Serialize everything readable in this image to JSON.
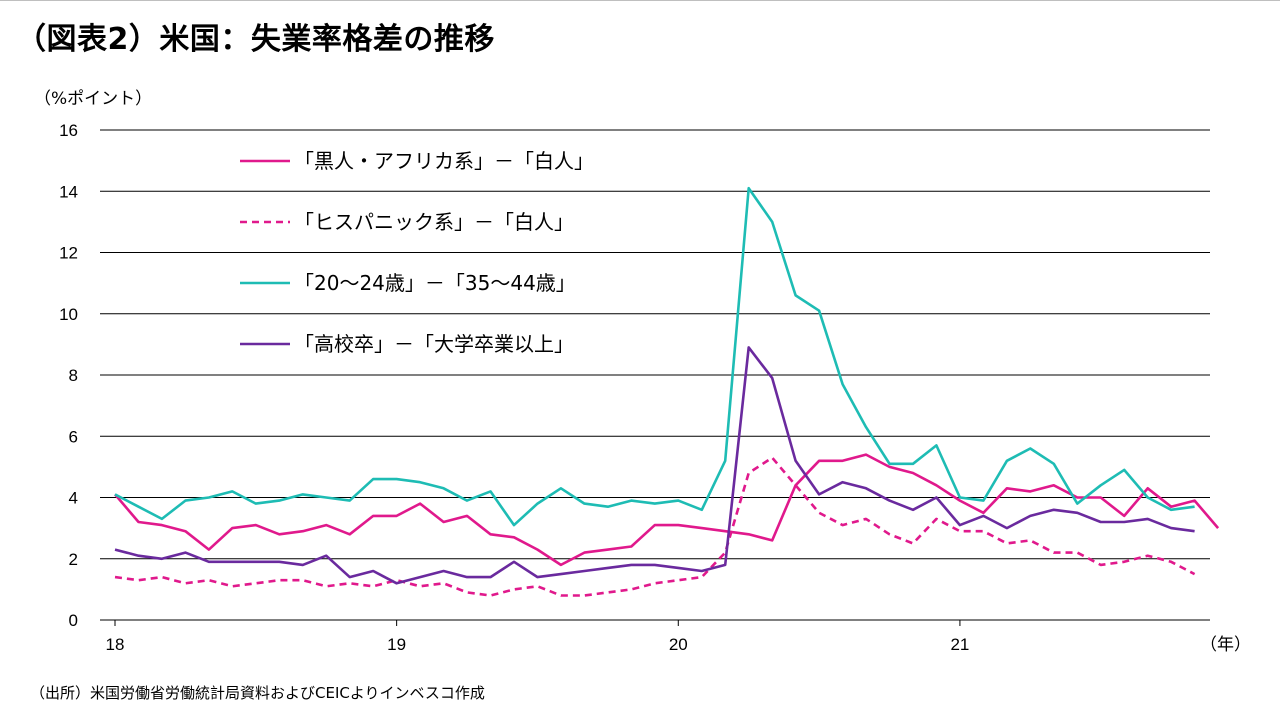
{
  "title": "（図表2）米国：失業率格差の推移",
  "source": "（出所）米国労働省労働統計局資料およびCEICよりインベスコ作成",
  "chart_data": {
    "type": "line",
    "y_unit_label": "（%ポイント）",
    "x_unit_label": "（年）",
    "ylim": [
      0,
      16
    ],
    "y_ticks": [
      0,
      2,
      4,
      6,
      8,
      10,
      12,
      14,
      16
    ],
    "xlim": [
      0,
      47
    ],
    "x_ticks": [
      {
        "pos": 0,
        "label": "18"
      },
      {
        "pos": 12,
        "label": "19"
      },
      {
        "pos": 24,
        "label": "20"
      },
      {
        "pos": 36,
        "label": "21"
      }
    ],
    "grid": true,
    "legend_position": "top-left",
    "series": [
      {
        "name": "「黒人・アフリカ系」－「白人」",
        "color": "#e0198c",
        "dash": "solid",
        "values": [
          4.1,
          3.2,
          3.1,
          2.9,
          2.3,
          3.0,
          3.1,
          2.8,
          2.9,
          3.1,
          2.8,
          3.4,
          3.4,
          3.8,
          3.2,
          3.4,
          2.8,
          2.7,
          2.3,
          1.8,
          2.2,
          2.3,
          2.4,
          3.1,
          3.1,
          3.0,
          2.9,
          2.8,
          2.6,
          4.4,
          5.2,
          5.2,
          5.4,
          5.0,
          4.8,
          4.4,
          3.9,
          3.5,
          4.3,
          4.2,
          4.4,
          4.0,
          4.0,
          3.4,
          4.3,
          3.7,
          3.9,
          3.0
        ]
      },
      {
        "name": "「ヒスパニック系」－「白人」",
        "color": "#e0198c",
        "dash": "dashed",
        "values": [
          1.4,
          1.3,
          1.4,
          1.2,
          1.3,
          1.1,
          1.2,
          1.3,
          1.3,
          1.1,
          1.2,
          1.1,
          1.3,
          1.1,
          1.2,
          0.9,
          0.8,
          1.0,
          1.1,
          0.8,
          0.8,
          0.9,
          1.0,
          1.2,
          1.3,
          1.4,
          2.2,
          4.8,
          5.3,
          4.4,
          3.5,
          3.1,
          3.3,
          2.8,
          2.5,
          3.3,
          2.9,
          2.9,
          2.5,
          2.6,
          2.2,
          2.2,
          1.8,
          1.9,
          2.1,
          1.9,
          1.5
        ]
      },
      {
        "name": "「20～24歳」－「35～44歳」",
        "color": "#1ebcb4",
        "dash": "solid",
        "values": [
          4.1,
          3.7,
          3.3,
          3.9,
          4.0,
          4.2,
          3.8,
          3.9,
          4.1,
          4.0,
          3.9,
          4.6,
          4.6,
          4.5,
          4.3,
          3.9,
          4.2,
          3.1,
          3.8,
          4.3,
          3.8,
          3.7,
          3.9,
          3.8,
          3.9,
          3.6,
          5.2,
          14.1,
          13.0,
          10.6,
          10.1,
          7.7,
          6.3,
          5.1,
          5.1,
          5.7,
          4.0,
          3.9,
          5.2,
          5.6,
          5.1,
          3.8,
          4.4,
          4.9,
          4.0,
          3.6,
          3.7
        ]
      },
      {
        "name": "「高校卒」－「大学卒業以上」",
        "color": "#6a2a9e",
        "dash": "solid",
        "values": [
          2.3,
          2.1,
          2.0,
          2.2,
          1.9,
          1.9,
          1.9,
          1.9,
          1.8,
          2.1,
          1.4,
          1.6,
          1.2,
          1.4,
          1.6,
          1.4,
          1.4,
          1.9,
          1.4,
          1.5,
          1.6,
          1.7,
          1.8,
          1.8,
          1.7,
          1.6,
          1.8,
          8.9,
          7.9,
          5.2,
          4.1,
          4.5,
          4.3,
          3.9,
          3.6,
          4.0,
          3.1,
          3.4,
          3.0,
          3.4,
          3.6,
          3.5,
          3.2,
          3.2,
          3.3,
          3.0,
          2.9
        ]
      }
    ]
  }
}
